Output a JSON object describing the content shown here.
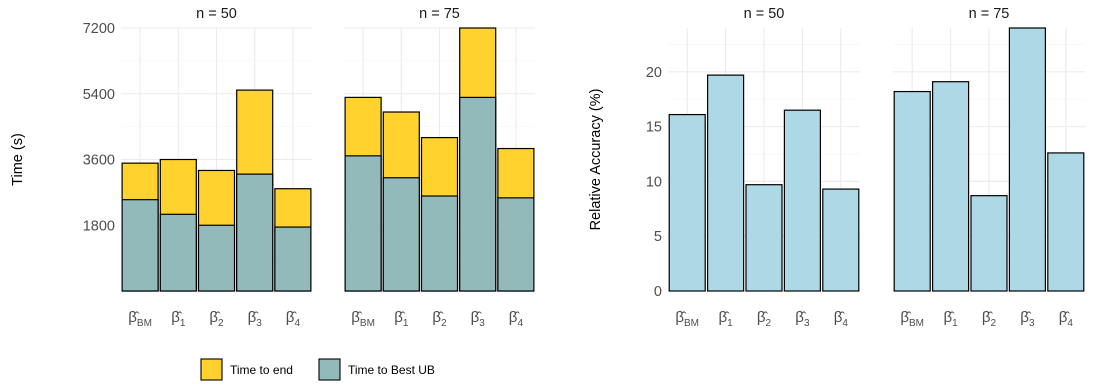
{
  "chart_data": [
    {
      "type": "bar",
      "stacked": true,
      "ylabel": "Time (s)",
      "ylim": [
        0,
        7200
      ],
      "yticks": [
        1800,
        3600,
        5400,
        7200
      ],
      "grid": true,
      "categories": [
        "β̂BM",
        "β̂1",
        "β̂2",
        "β̂3",
        "β̂4"
      ],
      "facets": [
        {
          "label": "n = 50",
          "series": [
            {
              "name": "Time to Best UB",
              "values": [
                2500,
                2100,
                1800,
                3200,
                1750
              ]
            },
            {
              "name": "Time to end",
              "values": [
                3500,
                3600,
                3300,
                5500,
                2800
              ]
            }
          ]
        },
        {
          "label": "n = 75",
          "series": [
            {
              "name": "Time to Best UB",
              "values": [
                3700,
                3100,
                2600,
                5300,
                2550
              ]
            },
            {
              "name": "Time to end",
              "values": [
                5300,
                4900,
                4200,
                7200,
                3900
              ]
            }
          ]
        }
      ],
      "colors": {
        "Time to end": "#FFD22E",
        "Time to Best UB": "#93BABA"
      },
      "legend": {
        "position": "bottom",
        "entries": [
          "Time to end",
          "Time to Best UB"
        ]
      }
    },
    {
      "type": "bar",
      "ylabel": "Relative Accuracy (%)",
      "ylim": [
        0,
        24
      ],
      "yticks": [
        0,
        5,
        10,
        15,
        20
      ],
      "grid": true,
      "categories": [
        "β̂BM",
        "β̂1",
        "β̂2",
        "β̂3",
        "β̂4"
      ],
      "facets": [
        {
          "label": "n = 50",
          "values": [
            16.1,
            19.7,
            9.7,
            16.5,
            9.3
          ]
        },
        {
          "label": "n = 75",
          "values": [
            18.2,
            19.1,
            8.7,
            24.0,
            12.6
          ]
        }
      ],
      "color": "#ADD8E6"
    }
  ]
}
